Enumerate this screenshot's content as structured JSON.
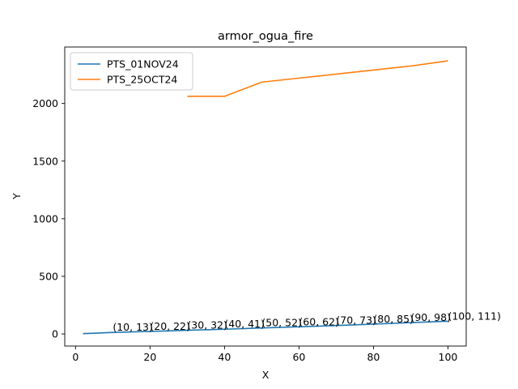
{
  "chart_data": {
    "type": "line",
    "title": "armor_ogua_fire",
    "xlabel": "X",
    "ylabel": "Y",
    "xlim": [
      -2.9,
      104.9
    ],
    "ylim": [
      -105,
      2490
    ],
    "xticks": [
      0,
      20,
      40,
      60,
      80,
      100
    ],
    "yticks": [
      0,
      500,
      1000,
      1500,
      2000
    ],
    "legend_position": "top-left",
    "grid": false,
    "series": [
      {
        "name": "PTS_01NOV24",
        "color": "#1f77b4",
        "x": [
          2,
          10,
          20,
          30,
          40,
          50,
          60,
          70,
          80,
          90,
          100
        ],
        "y": [
          3,
          13,
          22,
          32,
          41,
          52,
          62,
          73,
          85,
          98,
          111
        ]
      },
      {
        "name": "PTS_25OCT24",
        "color": "#ff7f0e",
        "x": [
          30,
          40,
          50,
          60,
          70,
          80,
          90,
          100
        ],
        "y": [
          2062,
          2062,
          2185,
          2220,
          2255,
          2290,
          2325,
          2370
        ]
      }
    ],
    "annotations": [
      {
        "text": "(10, 13)",
        "x": 10,
        "y": 13
      },
      {
        "text": "(20, 22)",
        "x": 20,
        "y": 22
      },
      {
        "text": "(30, 32)",
        "x": 30,
        "y": 32
      },
      {
        "text": "(40, 41)",
        "x": 40,
        "y": 41
      },
      {
        "text": "(50, 52)",
        "x": 50,
        "y": 52
      },
      {
        "text": "(60, 62)",
        "x": 60,
        "y": 62
      },
      {
        "text": "(70, 73)",
        "x": 70,
        "y": 73
      },
      {
        "text": "(80, 85)",
        "x": 80,
        "y": 85
      },
      {
        "text": "(90, 98)",
        "x": 90,
        "y": 98
      },
      {
        "text": "(100, 111)",
        "x": 100,
        "y": 111
      }
    ]
  }
}
